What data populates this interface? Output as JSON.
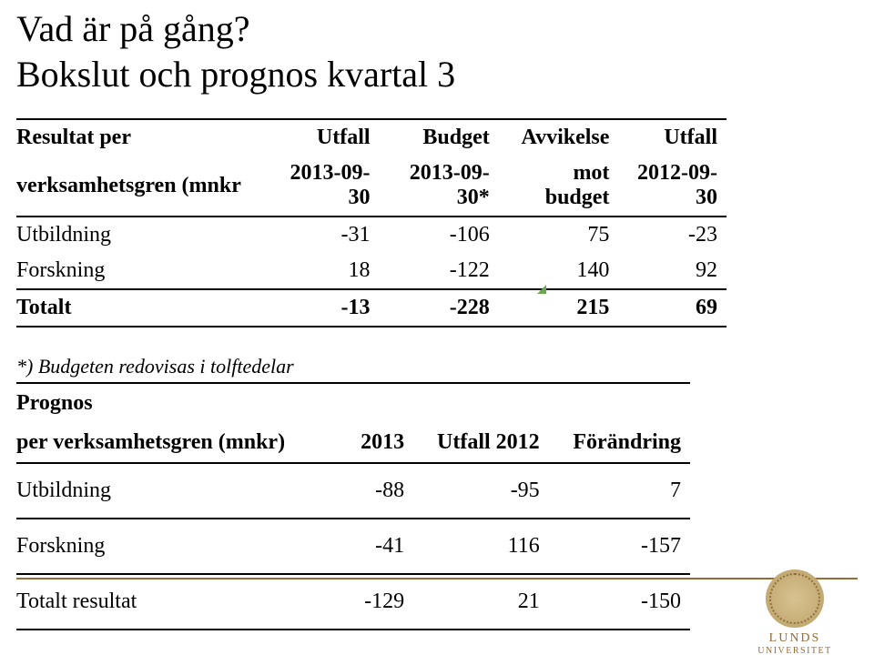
{
  "title": {
    "line1": "Vad är på gång?",
    "line2": "Bokslut och prognos kvartal 3"
  },
  "table1": {
    "header": {
      "col0_line1": "Resultat per",
      "col0_line2": "verksamhetsgren (mnkr",
      "col1_line1": "Utfall",
      "col1_line2": "2013-09-30",
      "col2_line1": "Budget",
      "col2_line2": "2013-09-30*",
      "col3_line1": "Avvikelse",
      "col3_line2": "mot budget",
      "col4_line1": "Utfall",
      "col4_line2": "2012-09-30"
    },
    "rows": [
      {
        "label": "Utbildning",
        "v1": "-31",
        "v2": "-106",
        "v3": "75",
        "v4": "-23"
      },
      {
        "label": "Forskning",
        "v1": "18",
        "v2": "-122",
        "v3": "140",
        "v4": "92"
      }
    ],
    "total": {
      "label": "Totalt",
      "v1": "-13",
      "v2": "-228",
      "v3": "215",
      "v4": "69"
    }
  },
  "footnote": "*) Budgeten redovisas i tolftedelar",
  "table2": {
    "header": {
      "col0_line1": "Prognos",
      "col0_line2": "per verksamhetsgren (mnkr)",
      "col1": "2013",
      "col2": "Utfall 2012",
      "col3": "Förändring"
    },
    "rows": [
      {
        "label": "Utbildning",
        "v1": "-88",
        "v2": "-95",
        "v3": "7"
      },
      {
        "label": "Forskning",
        "v1": "-41",
        "v2": "116",
        "v3": "-157"
      }
    ],
    "total": {
      "label": "Totalt resultat",
      "v1": "-129",
      "v2": "21",
      "v3": "-150"
    }
  },
  "logo": {
    "line1": "LUNDS",
    "line2": "UNIVERSITET"
  },
  "colors": {
    "brand": "#9c6a33",
    "text": "#000000",
    "marker": "#6aa84f"
  }
}
